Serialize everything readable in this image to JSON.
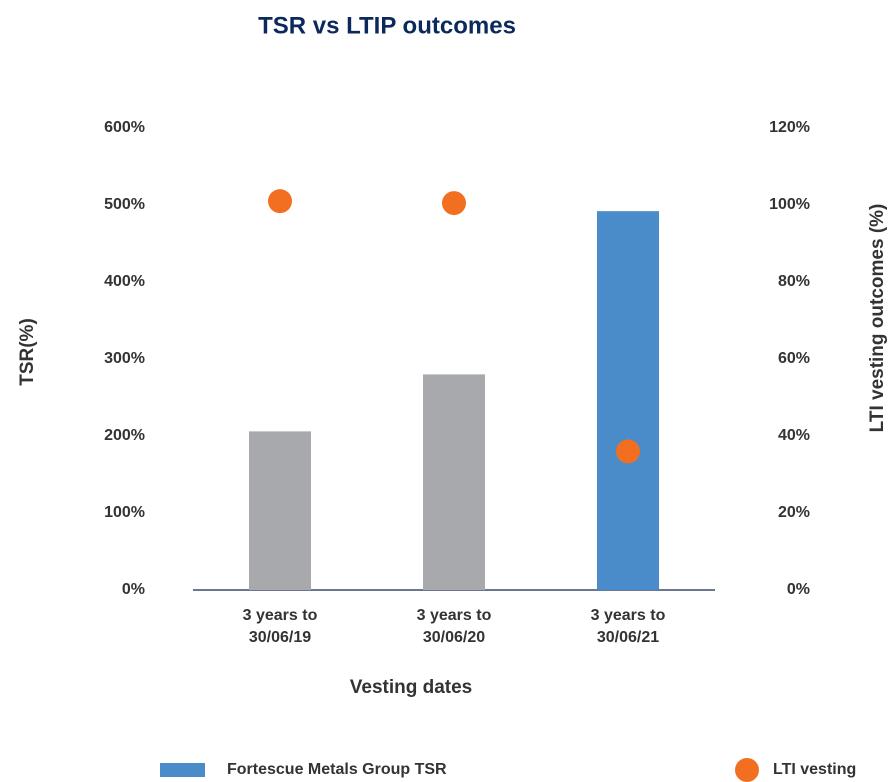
{
  "chart_data": {
    "type": "bar",
    "title": "TSR vs LTIP outcomes",
    "categories": [
      [
        "3 years to",
        "30/06/19"
      ],
      [
        "3 years to",
        "30/06/20"
      ],
      [
        "3 years to",
        "30/06/21"
      ]
    ],
    "x_label": "Vesting dates",
    "y_label": "TSR(%)",
    "y2_label": "LTI vesting outcomes (%)",
    "series": [
      {
        "name": "Fortescue Metals Group TSR",
        "color": "#4a8bc9",
        "colors": [
          "#a7a9ac",
          "#a7a9ac",
          "#4a8bc9"
        ],
        "values": [
          206,
          280,
          492
        ]
      },
      {
        "name": "LTI vesting",
        "type": "scatter",
        "axis": "y2",
        "color": "#f26f21",
        "values": [
          101,
          100.5,
          36
        ]
      }
    ],
    "ylim": [
      0,
      600
    ],
    "yticks": [
      {
        "value": 0,
        "label": "0%"
      },
      {
        "value": 100,
        "label": "100%"
      },
      {
        "value": 200,
        "label": "200%"
      },
      {
        "value": 300,
        "label": "300%"
      },
      {
        "value": 400,
        "label": "400%"
      },
      {
        "value": 500,
        "label": "500%"
      },
      {
        "value": 600,
        "label": "600%"
      }
    ],
    "y2lim": [
      0,
      120
    ],
    "y2ticks": [
      {
        "value": 0,
        "label": "0%"
      },
      {
        "value": 20,
        "label": "20%"
      },
      {
        "value": 40,
        "label": "40%"
      },
      {
        "value": 60,
        "label": "60%"
      },
      {
        "value": 80,
        "label": "80%"
      },
      {
        "value": 100,
        "label": "100%"
      },
      {
        "value": 120,
        "label": "120%"
      }
    ],
    "grid": false,
    "legend": "bottom"
  }
}
